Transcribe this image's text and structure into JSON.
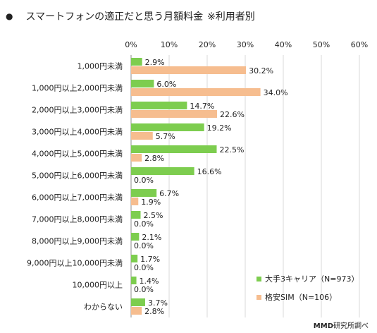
{
  "page": {
    "bullet": "●",
    "title": "スマートフォンの適正だと思う月額料金",
    "title_note": "※利用者別",
    "source_brand": "MMD",
    "source_rest": "研究所調べ"
  },
  "chart_data": {
    "type": "bar",
    "orientation": "horizontal",
    "categories": [
      "1,000円未満",
      "1,000円以上2,000円未満",
      "2,000円以上3,000円未満",
      "3,000円以上4,000円未満",
      "4,000円以上5,000円未満",
      "5,000円以上6,000円未満",
      "6,000円以上7,000円未満",
      "7,000円以上8,000円未満",
      "8,000円以上9,000円未満",
      "9,000円以上10,000円未満",
      "10,000円以上",
      "わからない"
    ],
    "series": [
      {
        "name": "大手3キャリア（N=973）",
        "color": "#7dcd4f",
        "values": [
          2.9,
          6.0,
          14.7,
          19.2,
          22.5,
          16.6,
          6.7,
          2.5,
          2.1,
          1.7,
          1.4,
          3.7
        ]
      },
      {
        "name": "格安SIM（N=106）",
        "color": "#f6bd8f",
        "values": [
          30.2,
          34.0,
          22.6,
          5.7,
          2.8,
          0.0,
          1.9,
          0.0,
          0.0,
          0.0,
          0.0,
          2.8
        ]
      }
    ],
    "x_ticks": [
      "0%",
      "10%",
      "20%",
      "30%",
      "40%",
      "50%",
      "60%"
    ],
    "xlim": [
      0,
      60
    ],
    "legend_position": "bottom-right",
    "value_format": "one-decimal-percent"
  }
}
